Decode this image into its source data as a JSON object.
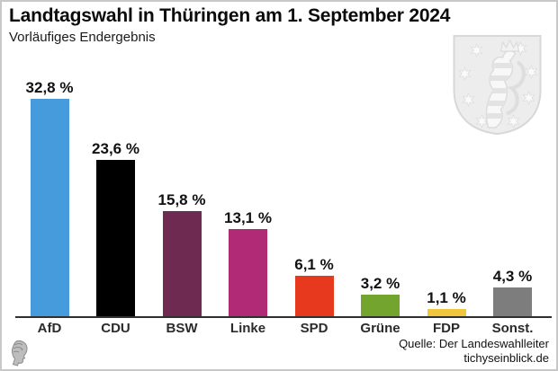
{
  "header": {
    "title": "Landtagswahl in Thüringen am 1. September 2024",
    "subtitle": "Vorläufiges Endergebnis"
  },
  "branding": {
    "coat_of_arms_icon": "thuringia-coat-of-arms",
    "logo_icon": "tichys-einblick-head-logo"
  },
  "chart_data": {
    "type": "bar",
    "categories": [
      "AfD",
      "CDU",
      "BSW",
      "Linke",
      "SPD",
      "Grüne",
      "FDP",
      "Sonst."
    ],
    "values": [
      32.8,
      23.6,
      15.8,
      13.1,
      6.1,
      3.2,
      1.1,
      4.3
    ],
    "value_labels": [
      "32,8 %",
      "23,6 %",
      "15,8 %",
      "13,1 %",
      "6,1 %",
      "3,2 %",
      "1,1 %",
      "4,3 %"
    ],
    "colors": [
      "#459BDB",
      "#000000",
      "#6E2A50",
      "#B12A76",
      "#E6391E",
      "#73A52E",
      "#F0C63C",
      "#7D7D7D"
    ],
    "title": "Landtagswahl in Thüringen am 1. September 2024",
    "subtitle": "Vorläufiges Endergebnis",
    "xlabel": "",
    "ylabel": "",
    "ylim": [
      0,
      35
    ],
    "grid": false,
    "legend": "none",
    "axis_color": "#2f2f2f",
    "value_label_format": "German comma decimal + %"
  },
  "footer": {
    "source_line1": "Quelle: Der Landeswahlleiter",
    "source_line2": "tichyseinblick.de"
  }
}
